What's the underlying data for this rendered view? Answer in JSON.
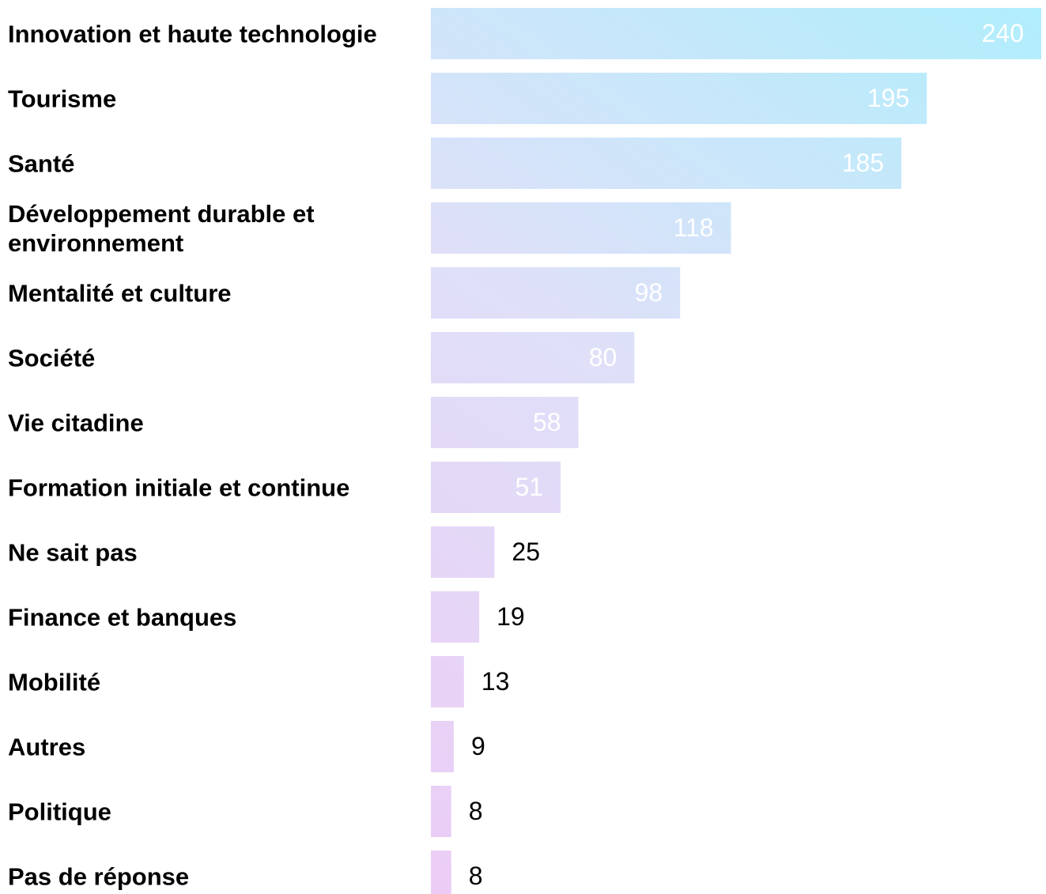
{
  "chart_data": {
    "type": "bar",
    "orientation": "horizontal",
    "categories": [
      "Innovation et haute technologie",
      "Tourisme",
      "Santé",
      "Développement durable et environnement",
      "Mentalité et culture",
      "Société",
      "Vie citadine",
      "Formation initiale et continue",
      "Ne sait pas",
      "Finance et banques",
      "Mobilité",
      "Autres",
      "Politique",
      "Pas de réponse"
    ],
    "values": [
      240,
      195,
      185,
      118,
      98,
      80,
      58,
      51,
      25,
      19,
      13,
      9,
      8,
      8
    ],
    "colors": [
      "#ecccf5",
      "#dfe0f8",
      "#b0eefc"
    ]
  }
}
